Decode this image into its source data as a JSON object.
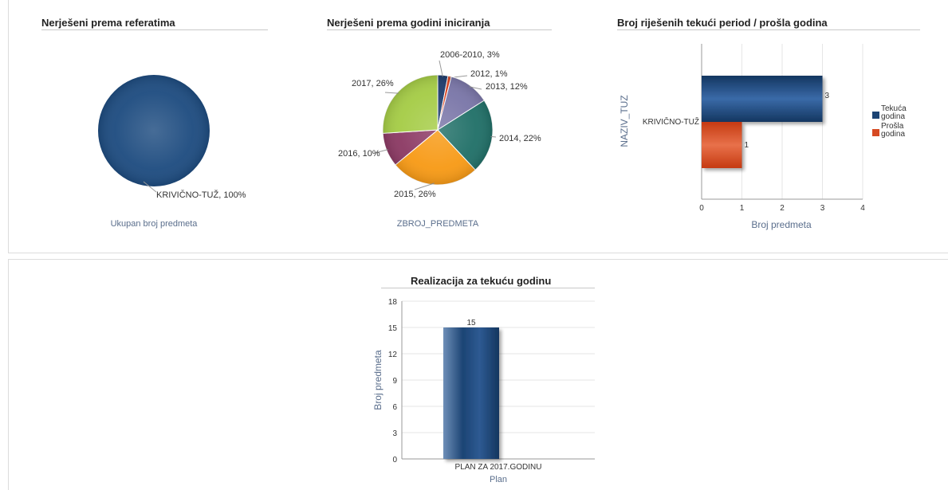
{
  "charts": {
    "pie1": {
      "title": "Nerješeni prema referatima"
    },
    "pie2": {
      "title": "Nerješeni prema godini iniciranja"
    },
    "hbar": {
      "title": "Broj riješenih tekući period / prošla godina"
    },
    "vbar": {
      "title": "Realizacija za tekuću godinu"
    }
  },
  "chart_data": [
    {
      "type": "pie",
      "title": "Nerješeni prema referatima",
      "xlabel": "Ukupan broj predmeta",
      "slices": [
        {
          "label": "KRIVIČNO-TUŽ, 100%",
          "value": 100,
          "color": "#1e4c80"
        }
      ]
    },
    {
      "type": "pie",
      "title": "Nerješeni prema godini iniciranja",
      "xlabel": "ZBROJ_PREDMETA",
      "slices": [
        {
          "label": "2006-2010, 3%",
          "value": 3,
          "color": "#1f3d6e"
        },
        {
          "label": "2012, 1%",
          "value": 1,
          "color": "#d9411e"
        },
        {
          "label": "2013, 12%",
          "value": 12,
          "color": "#7a76a8"
        },
        {
          "label": "2014, 22%",
          "value": 22,
          "color": "#217068"
        },
        {
          "label": "2015, 26%",
          "value": 26,
          "color": "#f79a16"
        },
        {
          "label": "2016, 10%",
          "value": 10,
          "color": "#8c3a64"
        },
        {
          "label": "2017, 26%",
          "value": 26,
          "color": "#a5cc46"
        }
      ]
    },
    {
      "type": "bar",
      "orientation": "horizontal",
      "title": "Broj riješenih tekući period / prošla godina",
      "categories": [
        "KRIVIČNO-TUŽ"
      ],
      "series": [
        {
          "name": "Tekuća godina",
          "values": [
            3
          ],
          "color": "#1c4474"
        },
        {
          "name": "Prošla godina",
          "values": [
            1
          ],
          "color": "#d64a22"
        }
      ],
      "xlabel": "Broj predmeta",
      "ylabel": "NAZIV_TUZ",
      "xlim": [
        0,
        4
      ],
      "xticks": [
        0,
        1,
        2,
        3,
        4
      ],
      "legend_labels": [
        [
          "Tekuća",
          "godina"
        ],
        [
          "Prošla",
          "godina"
        ]
      ],
      "legend": "right",
      "grid": true
    },
    {
      "type": "bar",
      "title": "Realizacija za tekuću godinu",
      "categories": [
        "PLAN ZA 2017.GODINU"
      ],
      "values": [
        15
      ],
      "color": "#1c4474",
      "xlabel": "Plan",
      "ylabel": "Broj predmeta",
      "ylim": [
        0,
        18
      ],
      "yticks": [
        0,
        3,
        6,
        9,
        12,
        15,
        18
      ],
      "grid": true
    }
  ]
}
